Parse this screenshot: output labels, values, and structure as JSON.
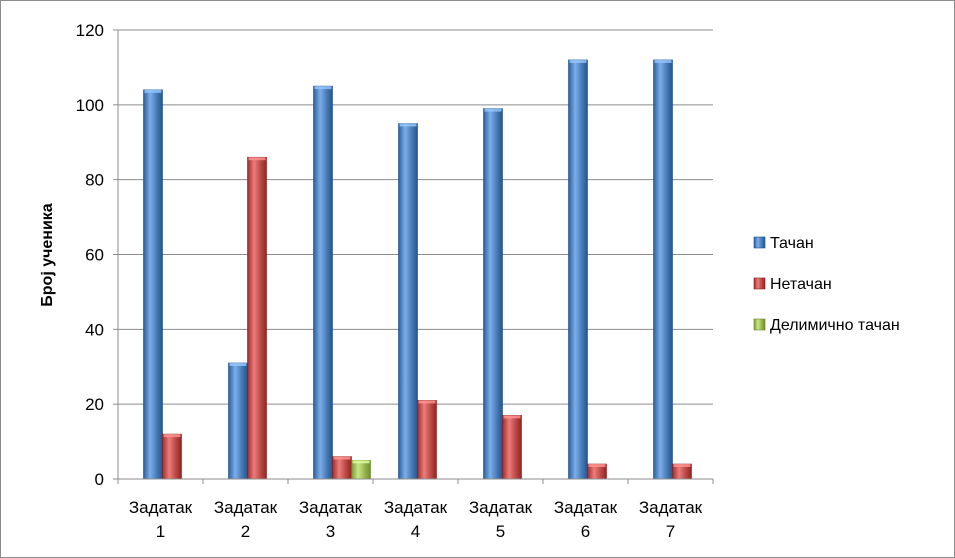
{
  "chart_data": {
    "type": "bar",
    "title": "",
    "xlabel": "",
    "ylabel": "Број ученика",
    "categories": [
      [
        "Задатак",
        "1"
      ],
      [
        "Задатак",
        "2"
      ],
      [
        "Задатак",
        "3"
      ],
      [
        "Задатак",
        "4"
      ],
      [
        "Задатак",
        "5"
      ],
      [
        "Задатак",
        "6"
      ],
      [
        "Задатак",
        "7"
      ]
    ],
    "series": [
      {
        "name": "Тачан",
        "color": "#4f81bd",
        "values": [
          104,
          31,
          105,
          95,
          99,
          112,
          112
        ]
      },
      {
        "name": "Нетачан",
        "color": "#c0504d",
        "values": [
          12,
          86,
          6,
          21,
          17,
          4,
          4
        ]
      },
      {
        "name": "Делимично тачан",
        "color": "#9bbb59",
        "values": [
          0,
          0,
          5,
          0,
          0,
          0,
          0
        ]
      }
    ],
    "ylim": [
      0,
      120
    ],
    "yticks": [
      0,
      20,
      40,
      60,
      80,
      100,
      120
    ],
    "grid": true,
    "legend_position": "right"
  }
}
